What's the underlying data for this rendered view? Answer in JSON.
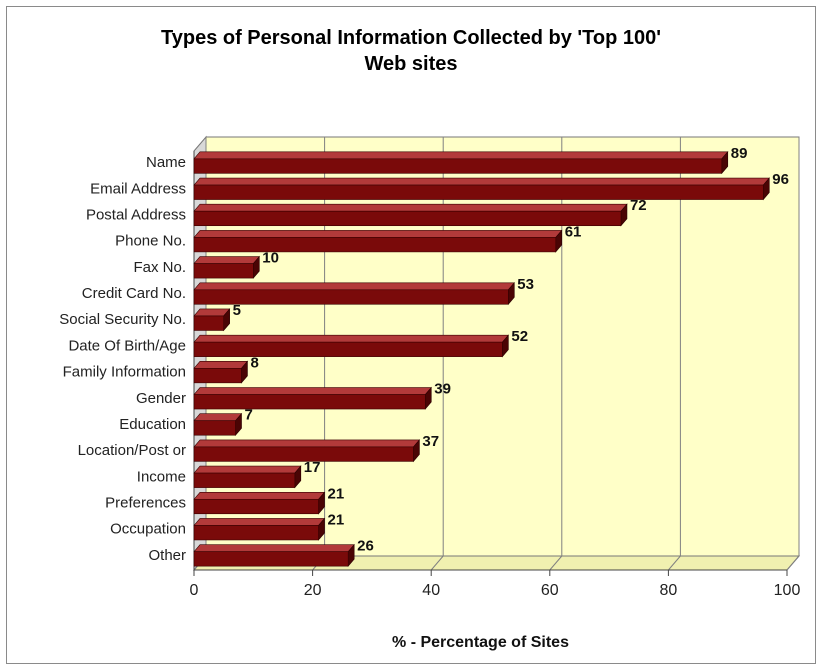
{
  "chart_data": {
    "type": "bar",
    "orientation": "horizontal",
    "title_lines": [
      "Types of Personal Information Collected by 'Top 100'",
      "Web sites"
    ],
    "xlabel": "% - Percentage of Sites",
    "ylabel": "",
    "categories": [
      "Name",
      "Email Address",
      "Postal Address",
      "Phone No.",
      "Fax No.",
      "Credit Card No.",
      "Social Security No.",
      "Date Of Birth/Age",
      "Family Information",
      "Gender",
      "Education",
      "Location/Post or",
      "Income",
      "Preferences",
      "Occupation",
      "Other"
    ],
    "values": [
      89,
      96,
      72,
      61,
      10,
      53,
      5,
      52,
      8,
      39,
      7,
      37,
      17,
      21,
      21,
      26
    ],
    "xlim": [
      0,
      100
    ],
    "xticks": [
      0,
      20,
      40,
      60,
      80,
      100
    ],
    "grid": true,
    "legend": "none",
    "colors": {
      "bar_front": "#7a0a0a",
      "bar_top": "#b23a3a",
      "bar_end": "#4a0404",
      "plot_back": "#ffffc8",
      "plot_floor": "#f0f0b0",
      "plot_wall": "#d8d8d8",
      "gridline": "#808080"
    }
  }
}
